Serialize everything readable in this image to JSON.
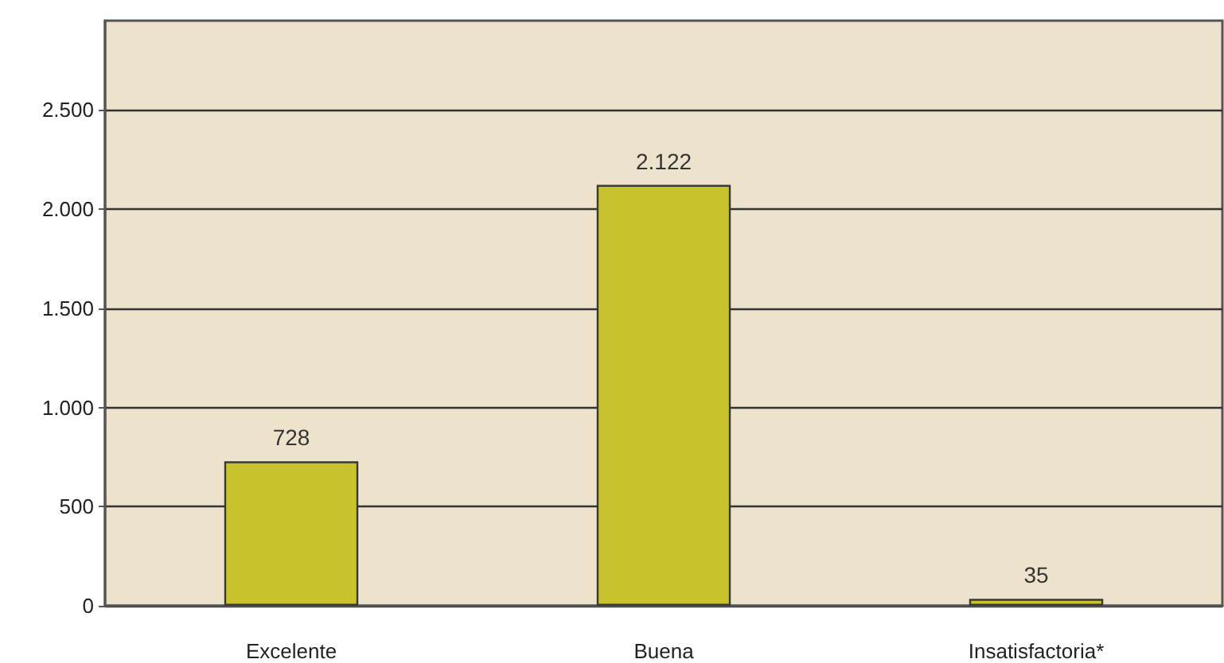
{
  "chart_data": {
    "type": "bar",
    "categories": [
      "Excelente",
      "Buena",
      "Insatisfactoria*"
    ],
    "values": [
      728,
      2122,
      35
    ],
    "color": "#c8c22f",
    "value_labels": [
      "728",
      "2.122",
      "35"
    ],
    "ylim": [
      0,
      2950
    ],
    "yticks": [
      0,
      500,
      {
        "value": 1000,
        "label": "1.000"
      },
      {
        "value": 1500,
        "label": "1.500"
      },
      {
        "value": 2000,
        "label": "2.000"
      },
      {
        "value": 2500,
        "label": "2.500"
      }
    ],
    "grid": "y"
  }
}
